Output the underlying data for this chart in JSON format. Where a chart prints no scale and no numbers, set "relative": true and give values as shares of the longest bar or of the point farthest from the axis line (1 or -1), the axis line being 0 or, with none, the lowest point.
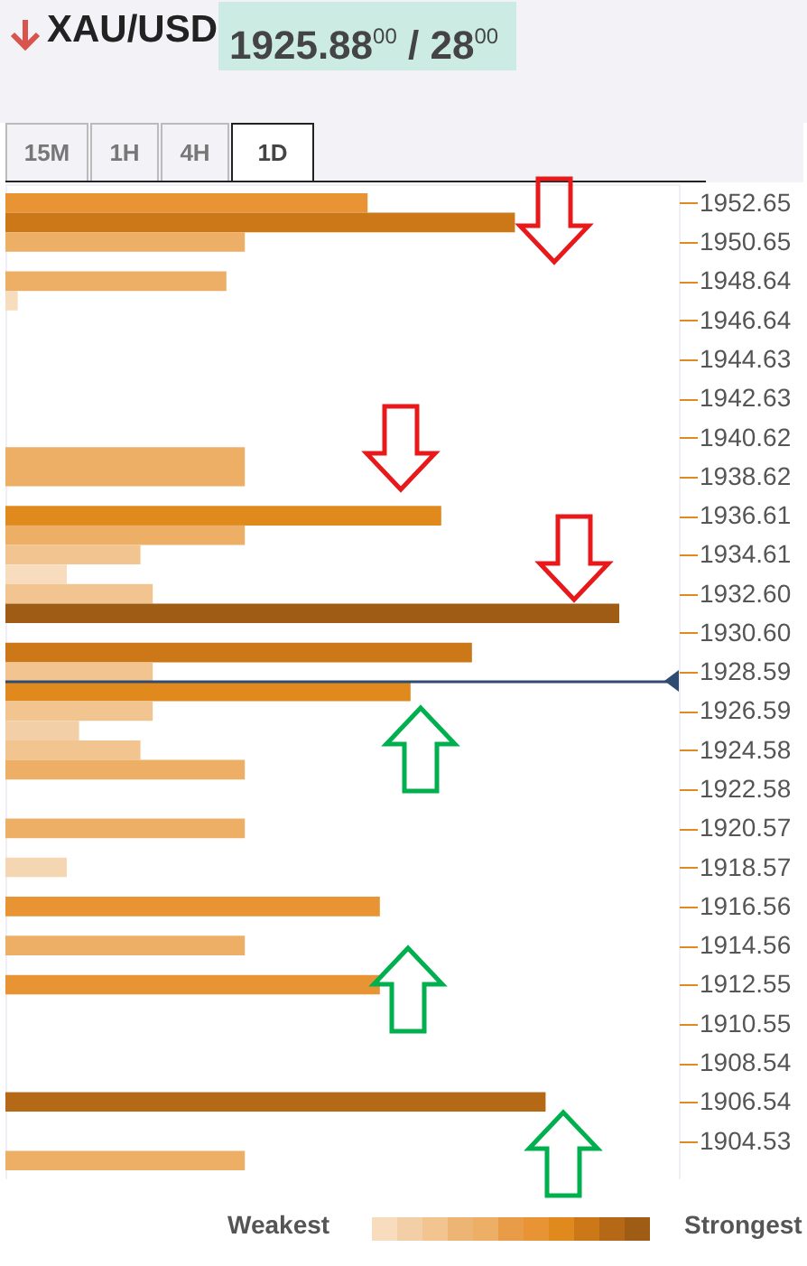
{
  "chart_data": {
    "type": "bar",
    "orientation": "horizontal",
    "relative": true,
    "title": "XAU/USD",
    "subtitle": "1925.88$^{00}$ / 28$^{00}$",
    "x": [
      1952.65,
      1951.65,
      1950.65,
      1949.64,
      1948.64,
      1947.64,
      1946.64,
      1945.63,
      1944.63,
      1943.63,
      1942.63,
      1941.62,
      1940.62,
      1939.62,
      1938.62,
      1937.61,
      1936.61,
      1935.61,
      1934.61,
      1933.6,
      1932.6,
      1931.6,
      1930.6,
      1929.59,
      1928.59,
      1927.59,
      1926.59,
      1925.58,
      1924.58,
      1923.58,
      1922.58,
      1921.57,
      1920.57,
      1919.57,
      1918.57,
      1917.56,
      1916.56,
      1915.56,
      1914.56,
      1913.55,
      1912.55,
      1911.55,
      1910.55,
      1909.54,
      1908.54,
      1907.54,
      1906.54,
      1905.53,
      1904.53,
      1903.53
    ],
    "values": [
      0.59,
      0.83,
      0.39,
      null,
      0.36,
      0.02,
      null,
      null,
      null,
      null,
      null,
      null,
      null,
      0.39,
      0.39,
      null,
      0.71,
      0.39,
      0.22,
      0.1,
      0.24,
      1,
      null,
      0.76,
      0.24,
      0.66,
      0.24,
      0.12,
      0.22,
      0.39,
      null,
      null,
      0.39,
      null,
      0.1,
      null,
      0.61,
      null,
      0.39,
      null,
      0.61,
      null,
      null,
      null,
      null,
      null,
      0.88,
      null,
      null,
      0.39
    ],
    "colors": [
      "#e89435",
      "#cd7818",
      "#edae65",
      null,
      "#edae65",
      "#f7dcbd",
      null,
      null,
      null,
      null,
      null,
      null,
      null,
      "#edae65",
      "#edae65",
      null,
      "#e08a1e",
      "#edae65",
      "#f2c590",
      "#f7dcbd",
      "#f2c590",
      "#9e5c14",
      null,
      "#cd7818",
      "#f2c590",
      "#e08a1e",
      "#f2c590",
      "#f3cfa7",
      "#f2c590",
      "#edae65",
      null,
      null,
      "#edae65",
      null,
      "#f5d6b3",
      null,
      "#e89435",
      null,
      "#edae65",
      null,
      "#e89435",
      null,
      null,
      null,
      null,
      null,
      "#b56917",
      null,
      null,
      "#edae65"
    ],
    "ylim": [
      1903.03,
      1953.15
    ],
    "yticks": [
      1952.65,
      1950.65,
      1948.64,
      1946.64,
      1944.63,
      1942.63,
      1940.62,
      1938.62,
      1936.61,
      1934.61,
      {
        "value": 1932.6,
        "label": "1932.60"
      },
      {
        "value": 1930.6,
        "label": "1930.60"
      },
      1928.59,
      1926.59,
      1924.58,
      1922.58,
      1920.57,
      1918.57,
      1916.56,
      1914.56,
      1912.55,
      1910.55,
      1908.54,
      1906.54,
      1904.53
    ],
    "ref_lines": [
      {
        "axis": "y",
        "value": 1928.09,
        "color": "#2f4b70"
      }
    ],
    "annotations": [
      "15M",
      "1H",
      "4H",
      "1D",
      "Weakest",
      "Strongest"
    ]
  }
}
